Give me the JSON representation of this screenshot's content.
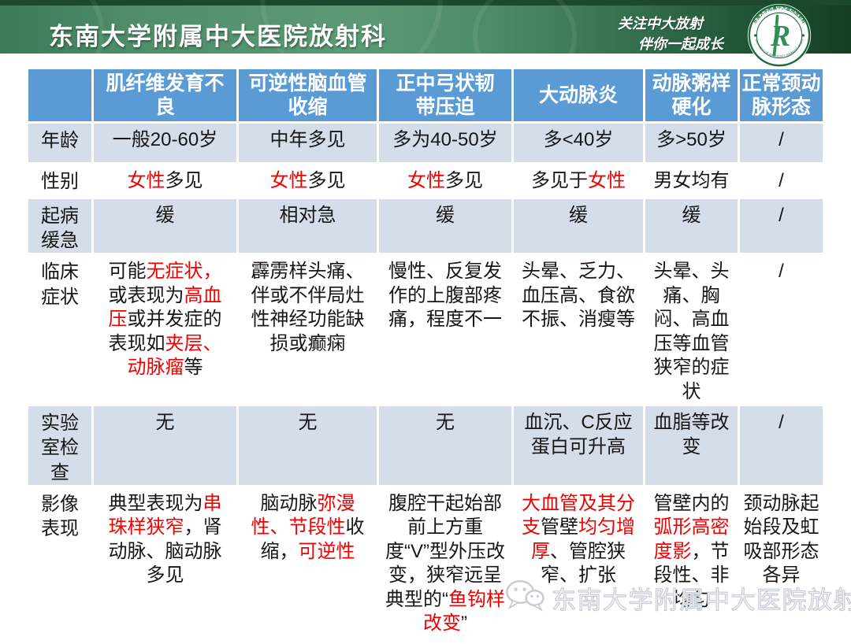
{
  "colors": {
    "blue": "#5B9BD5",
    "band": "#D5DDE9",
    "red": "#F20000",
    "green_dark": "#153E24",
    "green_mid": "#45815F",
    "green_light": "#5C9A76",
    "logo_green": "#1C6B3D",
    "watermark_grey": "#C8CDD5"
  },
  "header": {
    "title": "东南大学附属中大医院放射科",
    "slogan_line1": "关注中大放射",
    "slogan_line2": "伴你一起成长",
    "logo": {
      "letter": "R",
      "top_text": "东南大学附属中大医院放射科",
      "bottom_text": "DEPARTMENT OF RADIOLOGY ZHONGDA HOSPITAL"
    }
  },
  "table": {
    "columns": [
      "",
      "肌纤维发育不\n良",
      "可逆性脑血管\n收缩",
      "正中弓状韧\n带压迫",
      "大动脉炎",
      "动脉粥样\n硬化",
      "正常颈动\n脉形态"
    ],
    "rows": [
      {
        "label": "年龄",
        "cells": [
          "一般20-60岁",
          "中年多见",
          "多为40-50岁",
          "多<40岁",
          "多>50岁",
          "/"
        ]
      },
      {
        "label": "性别",
        "cells": [
          [
            {
              "t": "女性",
              "red": true
            },
            {
              "t": "多见"
            }
          ],
          [
            {
              "t": "女性",
              "red": true
            },
            {
              "t": "多见"
            }
          ],
          [
            {
              "t": "女性",
              "red": true
            },
            {
              "t": "多见"
            }
          ],
          [
            {
              "t": "多见于"
            },
            {
              "t": "女性",
              "red": true
            }
          ],
          "男女均有",
          "/"
        ]
      },
      {
        "label": "起病缓急",
        "cells": [
          "缓",
          "相对急",
          "缓",
          "缓",
          "缓",
          "/"
        ]
      },
      {
        "label": "临床症状",
        "cells": [
          [
            {
              "t": "可能"
            },
            {
              "t": "无症状，",
              "red": true
            },
            {
              "t": "或表现为"
            },
            {
              "t": "高血压",
              "red": true
            },
            {
              "t": "或并发症的表现如"
            },
            {
              "t": "夹层、动脉瘤",
              "red": true
            },
            {
              "t": "等"
            }
          ],
          "霹雳样头痛、伴或不伴局灶性神经功能缺损或癫痫",
          "慢性、反复发作的上腹部疼痛，程度不一",
          "头晕、乏力、血压高、食欲不振、消瘦等",
          "头晕、头痛、胸闷、高血压等血管狭窄的症状",
          "/"
        ]
      },
      {
        "label": "实验室检查",
        "cells": [
          "无",
          "无",
          "无",
          "血沉、C反应蛋白可升高",
          "血脂等改变",
          "/"
        ]
      },
      {
        "label": "影像表现",
        "cells": [
          [
            {
              "t": "典型表现为"
            },
            {
              "t": "串珠样狭窄",
              "red": true
            },
            {
              "t": "，肾动脉、脑动脉多见"
            }
          ],
          [
            {
              "t": "脑动脉"
            },
            {
              "t": "弥漫性、节段性",
              "red": true
            },
            {
              "t": "收缩，"
            },
            {
              "t": "可逆性",
              "red": true
            }
          ],
          [
            {
              "t": "腹腔干起始部前上方重度“V”型外压改变，狭窄远呈典型的“"
            },
            {
              "t": "鱼钩样改变",
              "red": true
            },
            {
              "t": "”"
            }
          ],
          [
            {
              "t": "大血管及其分支",
              "red": true
            },
            {
              "t": "管壁"
            },
            {
              "t": "均匀增厚",
              "red": true
            },
            {
              "t": "、管腔狭窄、扩张"
            }
          ],
          [
            {
              "t": "管壁内的"
            },
            {
              "t": "弧形高密度影",
              "red": true
            },
            {
              "t": "，节段性、非均匀"
            }
          ],
          "颈动脉起始段及虹吸部形态各异"
        ]
      }
    ]
  },
  "watermark": {
    "icon": "wechat-icon",
    "text": "东南大学附属中大医院放射科"
  }
}
